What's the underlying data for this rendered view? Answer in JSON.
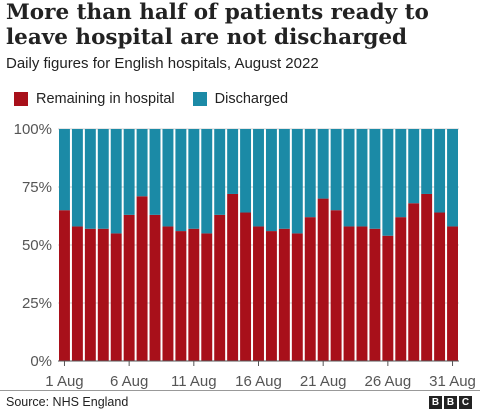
{
  "source": "Source: NHS England",
  "logo": [
    "B",
    "B",
    "C"
  ],
  "colors": {
    "remaining": "#a8101a",
    "discharged": "#1b8aa6",
    "grid": "#cccccc",
    "axis": "#555555"
  },
  "chart_data": {
    "type": "bar",
    "stacked": true,
    "title": "More than half of patients ready to leave hospital are not discharged",
    "subtitle": "Daily figures for English hospitals, August 2022",
    "xlabel": "",
    "ylabel": "",
    "ylim": [
      0,
      100
    ],
    "grid": true,
    "legend_position": "top-left",
    "yticks": [
      "0%",
      "25%",
      "50%",
      "75%",
      "100%"
    ],
    "ytick_values": [
      0,
      25,
      50,
      75,
      100
    ],
    "xtick_labels": [
      "1 Aug",
      "6 Aug",
      "11 Aug",
      "16 Aug",
      "21 Aug",
      "26 Aug",
      "31 Aug"
    ],
    "xtick_days": [
      1,
      6,
      11,
      16,
      21,
      26,
      31
    ],
    "categories": [
      "1 Aug",
      "2 Aug",
      "3 Aug",
      "4 Aug",
      "5 Aug",
      "6 Aug",
      "7 Aug",
      "8 Aug",
      "9 Aug",
      "10 Aug",
      "11 Aug",
      "12 Aug",
      "13 Aug",
      "14 Aug",
      "15 Aug",
      "16 Aug",
      "17 Aug",
      "18 Aug",
      "19 Aug",
      "20 Aug",
      "21 Aug",
      "22 Aug",
      "23 Aug",
      "24 Aug",
      "25 Aug",
      "26 Aug",
      "27 Aug",
      "28 Aug",
      "29 Aug",
      "30 Aug",
      "31 Aug"
    ],
    "series": [
      {
        "name": "Remaining in hospital",
        "values": [
          65,
          58,
          57,
          57,
          55,
          63,
          71,
          63,
          58,
          56,
          57,
          55,
          63,
          72,
          64,
          58,
          56,
          57,
          55,
          62,
          70,
          65,
          58,
          58,
          57,
          54,
          62,
          68,
          72,
          64,
          58
        ]
      },
      {
        "name": "Discharged",
        "values": [
          35,
          42,
          43,
          43,
          45,
          37,
          29,
          37,
          42,
          44,
          43,
          45,
          37,
          28,
          36,
          42,
          44,
          43,
          45,
          38,
          30,
          35,
          42,
          42,
          43,
          46,
          38,
          32,
          28,
          36,
          42
        ]
      }
    ]
  }
}
